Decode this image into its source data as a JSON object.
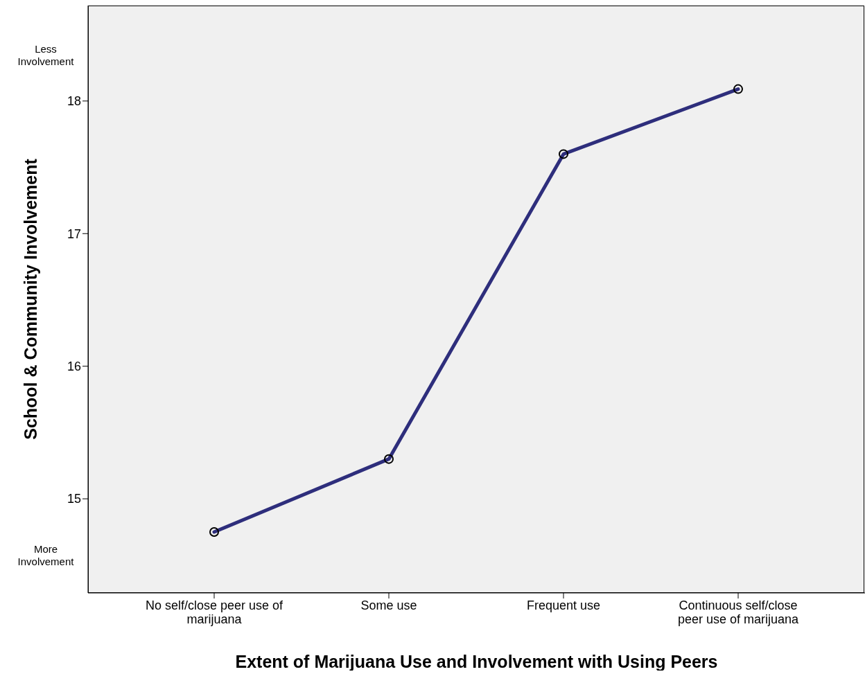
{
  "chart_data": {
    "type": "line",
    "xlabel": "Extent of Marijuana Use and Involvement with Using Peers",
    "ylabel": "School & Community Involvement",
    "categories": [
      "No self/close peer use of marijuana",
      "Some use",
      "Frequent use",
      "Continuous self/close peer use of marijuana"
    ],
    "series": [
      {
        "color": "#2e2e7c",
        "values": [
          14.75,
          15.3,
          17.6,
          18.09
        ]
      }
    ],
    "ylim": [
      14.29,
      18.72
    ],
    "yticks": [
      15,
      16,
      17,
      18
    ],
    "grid": false,
    "legend": false,
    "marker": "circle",
    "line_style": "solid",
    "annotations": [
      "Less Involvement",
      "More Involvement"
    ]
  }
}
